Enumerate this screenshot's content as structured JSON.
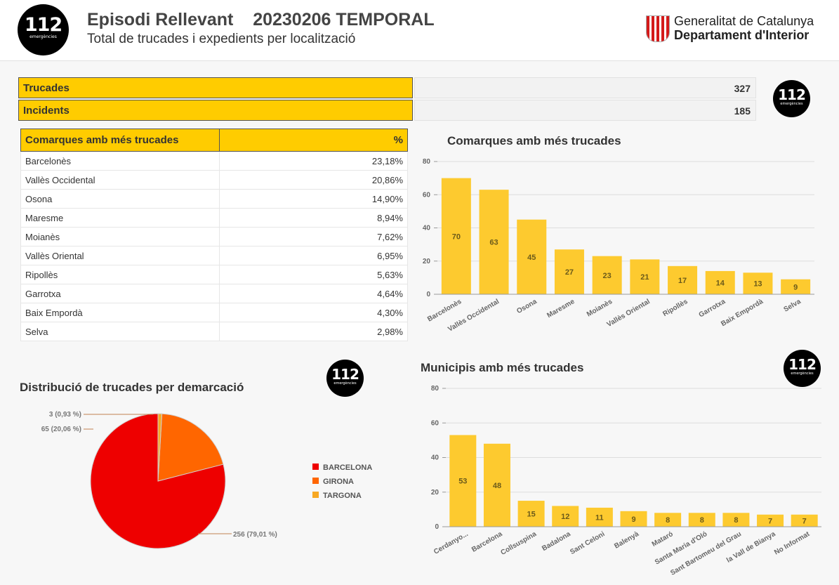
{
  "header": {
    "logo_number": "112",
    "logo_sub": "emergències",
    "title": "Episodi Rellevant",
    "event": "20230206 TEMPORAL",
    "subtitle": "Total de trucades i expedients per localització",
    "gov_line1": "Generalitat de Catalunya",
    "gov_line2": "Departament d'Interior"
  },
  "kpis": [
    {
      "label": "Trucades",
      "value": "327"
    },
    {
      "label": "Incidents",
      "value": "185"
    }
  ],
  "comarques_table": {
    "header_name": "Comarques amb més trucades",
    "header_pct": "%",
    "rows": [
      {
        "name": "Barcelonès",
        "pct": "23,18%"
      },
      {
        "name": "Vallès Occidental",
        "pct": "20,86%"
      },
      {
        "name": "Osona",
        "pct": "14,90%"
      },
      {
        "name": "Maresme",
        "pct": "8,94%"
      },
      {
        "name": "Moianès",
        "pct": "7,62%"
      },
      {
        "name": "Vallès Oriental",
        "pct": "6,95%"
      },
      {
        "name": "Ripollès",
        "pct": "5,63%"
      },
      {
        "name": "Garrotxa",
        "pct": "4,64%"
      },
      {
        "name": "Baix Empordà",
        "pct": "4,30%"
      },
      {
        "name": "Selva",
        "pct": "2,98%"
      }
    ]
  },
  "chart_data": [
    {
      "type": "bar",
      "title": "Comarques amb més trucades",
      "categories": [
        "Barcelonès",
        "Vallès Occidental",
        "Osona",
        "Maresme",
        "Moianès",
        "Vallès Oriental",
        "Ripollès",
        "Garrotxa",
        "Baix Empordà",
        "Selva"
      ],
      "values": [
        70,
        63,
        45,
        27,
        23,
        21,
        17,
        14,
        13,
        9
      ],
      "yticks": [
        "0",
        "20",
        "40",
        "60",
        "80"
      ],
      "ylim": [
        0,
        80
      ],
      "grid": true,
      "color": "#fdca2f"
    },
    {
      "type": "pie",
      "title": "Distribució de trucades per demarcació",
      "categories": [
        "BARCELONA",
        "GIRONA",
        "TARGONA"
      ],
      "values": [
        256,
        65,
        3
      ],
      "labels": [
        "256 (79,01 %)",
        "65 (20,06 %)",
        "3 (0,93 %)"
      ],
      "colors": [
        "#ee0000",
        "#ff6600",
        "#f7a823"
      ],
      "legend": "right"
    },
    {
      "type": "bar",
      "title": "Municipis amb més trucades",
      "categories": [
        "Cerdanyo...",
        "Barcelona",
        "Collsuspina",
        "Badalona",
        "Sant Celoni",
        "Balenyà",
        "Mataró",
        "Santa Maria d'Oló",
        "Sant Bartomeu del Grau",
        "la Vall de Bianya",
        "No Informat"
      ],
      "values": [
        53,
        48,
        15,
        12,
        11,
        9,
        8,
        8,
        8,
        7,
        7
      ],
      "yticks": [
        "0",
        "20",
        "40",
        "60",
        "80"
      ],
      "ylim": [
        0,
        80
      ],
      "grid": true,
      "color": "#fdca2f"
    }
  ]
}
